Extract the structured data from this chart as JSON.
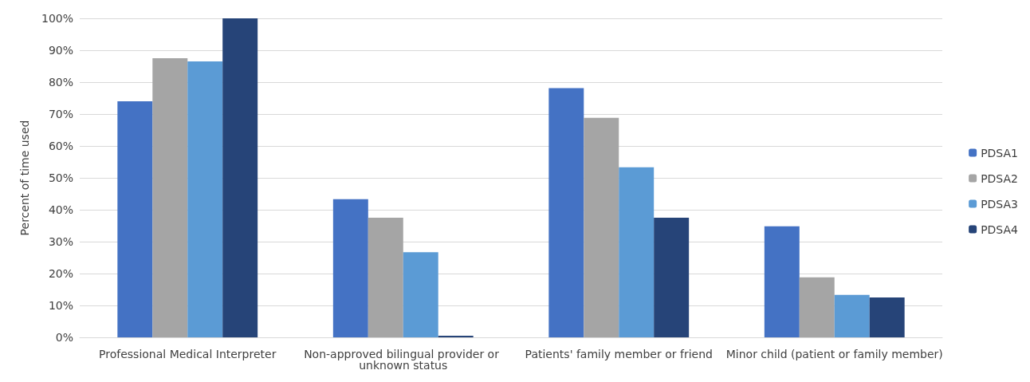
{
  "chart_data": {
    "type": "bar",
    "ylabel": "Percent of time used",
    "categories": [
      "Professional Medical Interpreter",
      "Non-approved bilingual provider or unknown status",
      "Patients' family member or friend",
      "Minor child (patient or family member)"
    ],
    "series": [
      {
        "name": "PDSA1",
        "color": "#4472c4",
        "values": [
          74,
          43.3,
          78.1,
          34.8
        ]
      },
      {
        "name": "PDSA2",
        "color": "#a5a5a5",
        "values": [
          87.5,
          37.5,
          68.8,
          18.8
        ]
      },
      {
        "name": "PDSA3",
        "color": "#5b9bd5",
        "values": [
          86.5,
          26.7,
          53.3,
          13.3
        ]
      },
      {
        "name": "PDSA4",
        "color": "#264478",
        "values": [
          100,
          0.5,
          37.5,
          12.5
        ]
      }
    ],
    "ylim": [
      0,
      100
    ],
    "yticks": [
      {
        "value": 0,
        "label": "0%"
      },
      {
        "value": 10,
        "label": "10%"
      },
      {
        "value": 20,
        "label": "20%"
      },
      {
        "value": 30,
        "label": "30%"
      },
      {
        "value": 40,
        "label": "40%"
      },
      {
        "value": 50,
        "label": "50%"
      },
      {
        "value": 60,
        "label": "60%"
      },
      {
        "value": 70,
        "label": "70%"
      },
      {
        "value": 80,
        "label": "80%"
      },
      {
        "value": 90,
        "label": "90%"
      },
      {
        "value": 100,
        "label": "100%"
      }
    ],
    "grid": "y",
    "legend": "right"
  }
}
